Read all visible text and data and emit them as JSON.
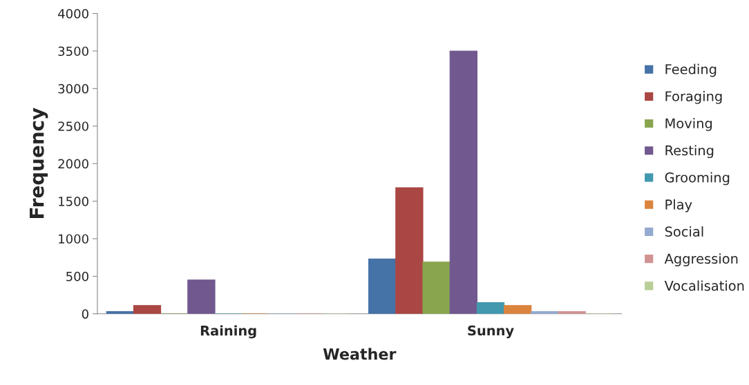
{
  "chart_data": {
    "type": "bar",
    "xlabel": "Weather",
    "ylabel": "Frequency",
    "categories": [
      "Raining",
      "Sunny"
    ],
    "series": [
      {
        "name": "Feeding",
        "color": "#4572a7",
        "values": [
          30,
          730
        ]
      },
      {
        "name": "Foraging",
        "color": "#aa4643",
        "values": [
          110,
          1680
        ]
      },
      {
        "name": "Moving",
        "color": "#89a54e",
        "values": [
          0,
          690
        ]
      },
      {
        "name": "Resting",
        "color": "#71588f",
        "values": [
          450,
          3500
        ]
      },
      {
        "name": "Grooming",
        "color": "#4198af",
        "values": [
          0,
          150
        ]
      },
      {
        "name": "Play",
        "color": "#db843d",
        "values": [
          0,
          110
        ]
      },
      {
        "name": "Social",
        "color": "#93a9cf",
        "values": [
          0,
          30
        ]
      },
      {
        "name": "Aggression",
        "color": "#d19392",
        "values": [
          0,
          30
        ]
      },
      {
        "name": "Vocalisation",
        "color": "#b9cd96",
        "values": [
          0,
          0
        ]
      }
    ],
    "ylim": [
      0,
      4000
    ],
    "yticks": [
      0,
      500,
      1000,
      1500,
      2000,
      2500,
      3000,
      3500,
      4000
    ],
    "grid": false,
    "legend": "right"
  }
}
